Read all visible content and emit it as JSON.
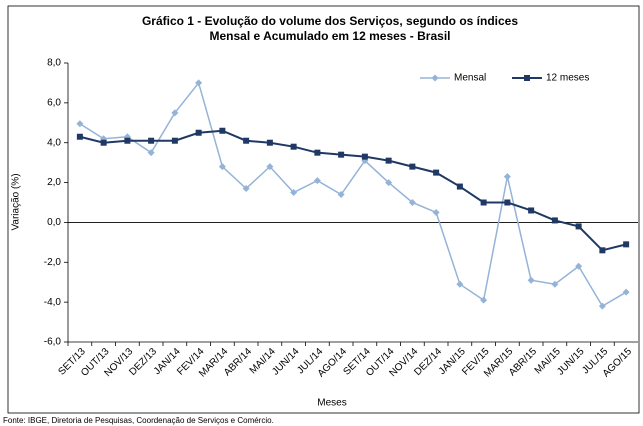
{
  "chart_data": {
    "type": "line",
    "title": [
      "Gráfico 1 - Evolução do volume dos Serviços, segundo os índices",
      "Mensal e Acumulado em 12 meses - Brasil"
    ],
    "x_label": "Meses",
    "y_label": "Variação (%)",
    "source": "Fonte: IBGE, Diretoria de Pesquisas, Coordenação de Serviços e Comércio.",
    "legend": "top-right",
    "categories": [
      "SET/13",
      "OUT/13",
      "NOV/13",
      "DEZ/13",
      "JAN/14",
      "FEV/14",
      "MAR/14",
      "ABR/14",
      "MAI/14",
      "JUN/14",
      "JUL/14",
      "AGO/14",
      "SET/14",
      "OUT/14",
      "NOV/14",
      "DEZ/14",
      "JAN/15",
      "FEV/15",
      "MAR/15",
      "ABR/15",
      "MAI/15",
      "JUN/15",
      "JUL/15",
      "AGO/15"
    ],
    "series": [
      {
        "name": "Mensal",
        "color": "#95b3d7",
        "marker": "diamond",
        "values": [
          4.95,
          4.2,
          4.3,
          3.5,
          5.5,
          7.0,
          2.8,
          1.7,
          2.8,
          1.5,
          2.1,
          1.4,
          3.1,
          2.0,
          1.0,
          0.5,
          -3.1,
          -3.9,
          2.3,
          -2.9,
          -3.1,
          -2.2,
          -4.2,
          -3.5
        ]
      },
      {
        "name": "12 meses",
        "color": "#1f3864",
        "marker": "square",
        "values": [
          4.3,
          4.0,
          4.1,
          4.1,
          4.1,
          4.5,
          4.6,
          4.1,
          4.0,
          3.8,
          3.5,
          3.4,
          3.3,
          3.1,
          2.8,
          2.5,
          1.8,
          1.0,
          1.0,
          0.6,
          0.1,
          -0.2,
          -1.4,
          -1.1
        ]
      }
    ],
    "ylim": [
      -6,
      8
    ],
    "yticks": [
      {
        "value": -6,
        "label": "-6,0"
      },
      {
        "value": -4,
        "label": "-4,0"
      },
      {
        "value": -2,
        "label": "-2,0"
      },
      {
        "value": 0,
        "label": "0,0"
      },
      {
        "value": 2,
        "label": "2,0"
      },
      {
        "value": 4,
        "label": "4,0"
      },
      {
        "value": 6,
        "label": "6,0"
      },
      {
        "value": 8,
        "label": "8,0"
      }
    ],
    "grid": false
  }
}
